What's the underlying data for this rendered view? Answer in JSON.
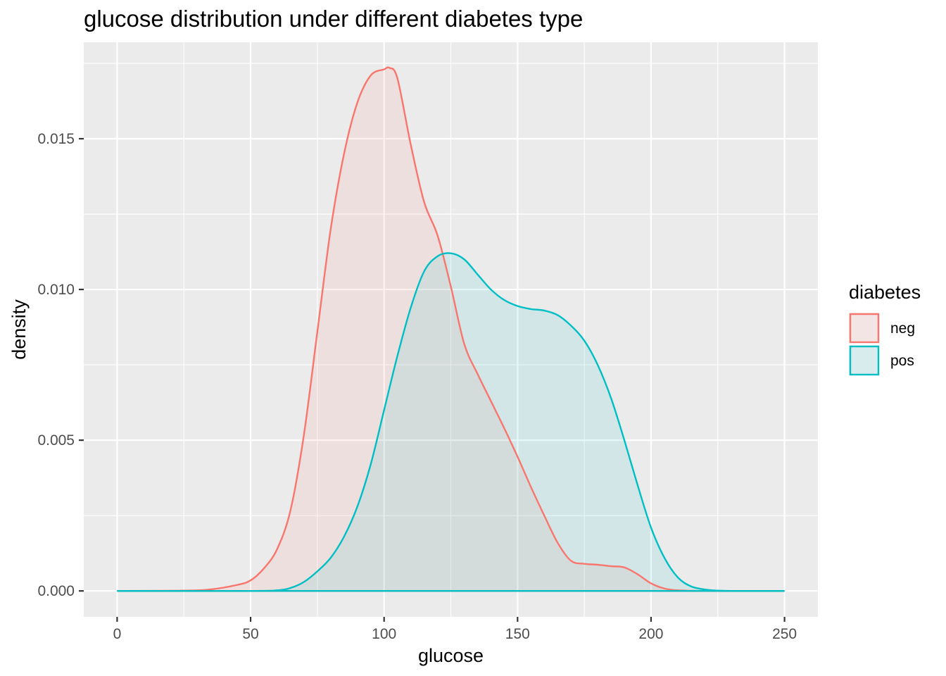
{
  "chart_data": {
    "type": "area",
    "title": "glucose distribution under different diabetes type",
    "xlabel": "glucose",
    "ylabel": "density",
    "xlim": [
      -12.5,
      262.5
    ],
    "ylim": [
      -0.00086,
      0.0182
    ],
    "x_ticks": [
      0,
      50,
      100,
      150,
      200,
      250
    ],
    "x_tick_labels": [
      "0",
      "50",
      "100",
      "150",
      "200",
      "250"
    ],
    "y_ticks": [
      0,
      0.005,
      0.01,
      0.015
    ],
    "y_tick_labels": [
      "0.000",
      "0.005",
      "0.010",
      "0.015"
    ],
    "grid": true,
    "panel_background": "#EBEBEB",
    "legend": {
      "title": "diabetes",
      "position": "right"
    },
    "series": [
      {
        "name": "neg",
        "color": "#F8766D",
        "fill": "#F8766D",
        "fill_alpha": 0.1,
        "x": [
          0,
          25,
          35,
          45,
          50,
          55,
          60,
          65,
          70,
          75,
          80,
          85,
          90,
          95,
          100,
          102,
          105,
          110,
          115,
          120,
          125,
          130,
          135,
          140,
          145,
          150,
          155,
          160,
          165,
          170,
          175,
          180,
          185,
          190,
          195,
          200,
          205,
          210,
          220,
          235,
          250
        ],
        "y": [
          0,
          1e-05,
          5e-05,
          0.0002,
          0.00035,
          0.00075,
          0.0014,
          0.0027,
          0.0052,
          0.0086,
          0.012,
          0.0145,
          0.0162,
          0.0171,
          0.0173,
          0.01735,
          0.017,
          0.0148,
          0.0129,
          0.0118,
          0.0101,
          0.0082,
          0.0072,
          0.0063,
          0.0054,
          0.00445,
          0.00345,
          0.0025,
          0.0016,
          0.001,
          0.0009,
          0.00087,
          0.00082,
          0.00078,
          0.00055,
          0.00025,
          8e-05,
          2e-05,
          0,
          0,
          0
        ]
      },
      {
        "name": "pos",
        "color": "#00BFC4",
        "fill": "#00BFC4",
        "fill_alpha": 0.1,
        "x": [
          0,
          50,
          60,
          65,
          70,
          75,
          80,
          85,
          90,
          95,
          100,
          105,
          110,
          115,
          120,
          125,
          130,
          135,
          140,
          145,
          150,
          155,
          160,
          165,
          170,
          175,
          180,
          185,
          190,
          195,
          200,
          205,
          210,
          215,
          220,
          225,
          230,
          240,
          250
        ],
        "y": [
          0,
          0,
          2e-05,
          0.0001,
          0.0003,
          0.00065,
          0.0011,
          0.0018,
          0.0028,
          0.0042,
          0.006,
          0.0078,
          0.0094,
          0.0106,
          0.0111,
          0.0112,
          0.011,
          0.0105,
          0.01,
          0.00965,
          0.00945,
          0.00935,
          0.0093,
          0.00915,
          0.0088,
          0.0083,
          0.0075,
          0.0064,
          0.005,
          0.0035,
          0.0021,
          0.0011,
          0.00045,
          0.00015,
          5e-05,
          1e-05,
          0,
          0,
          0
        ]
      }
    ]
  }
}
